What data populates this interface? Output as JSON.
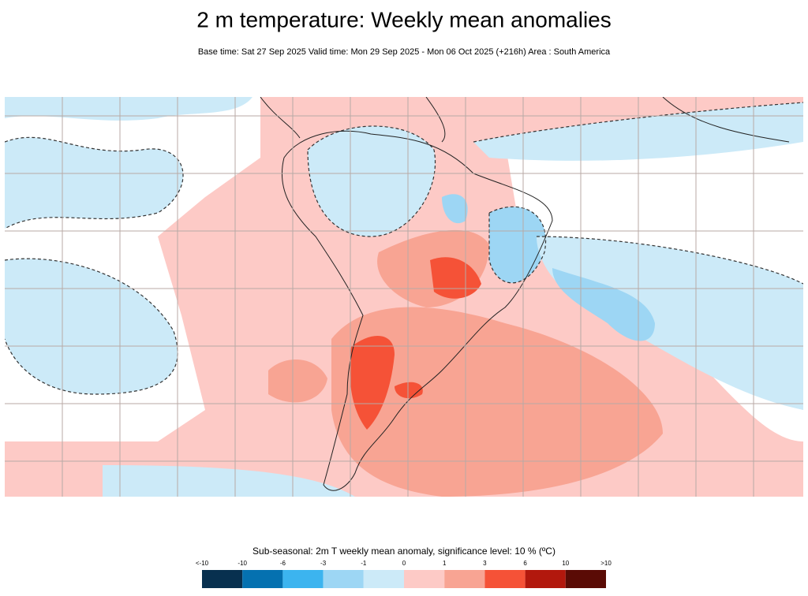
{
  "header": {
    "title": "2 m temperature: Weekly mean anomalies",
    "subtitle": "Base time: Sat 27 Sep 2025 Valid time: Mon 29 Sep 2025 - Mon 06 Oct 2025 (+216h) Area : South America"
  },
  "legend": {
    "title": "Sub-seasonal: 2m T weekly mean anomaly, significance level: 10 % (ºC)",
    "labels": [
      "<-10",
      "-10",
      "-6",
      "-3",
      "-1",
      "0",
      "1",
      "3",
      "6",
      "10",
      ">10"
    ],
    "colors": [
      "#08304f",
      "#0571b0",
      "#3cb4ef",
      "#9dd6f4",
      "#cceaf8",
      "#fdcac6",
      "#f8a493",
      "#f55237",
      "#b2180d",
      "#5a0b05"
    ]
  }
}
